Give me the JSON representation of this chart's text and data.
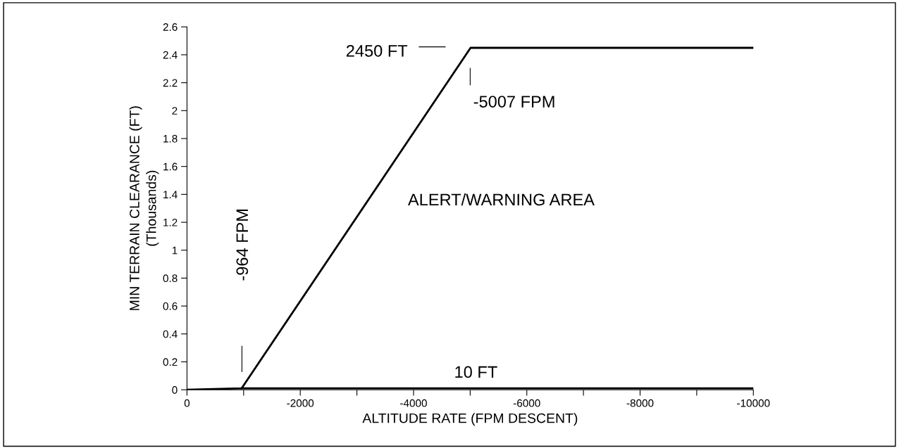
{
  "chart_data": {
    "type": "line",
    "xlabel": "ALTITUDE RATE (FPM DESCENT)",
    "ylabel": "MIN TERRAIN CLEARANCE (FT)\n(Thousands)",
    "series": [
      {
        "color": "#000000",
        "x": [
          0,
          -964,
          -5007,
          -10000
        ],
        "values": [
          0,
          0.01,
          2.45,
          2.45
        ]
      },
      {
        "color": "#000000",
        "x": [
          -964,
          -10000
        ],
        "values": [
          0.01,
          0.01
        ]
      }
    ],
    "xlim": [
      0,
      -10000
    ],
    "xticks": [
      0,
      {
        "value": -1000,
        "label": null
      },
      -2000,
      {
        "value": -3000,
        "label": null
      },
      -4000,
      {
        "value": -5000,
        "label": null
      },
      -6000,
      {
        "value": -7000,
        "label": null
      },
      -8000,
      {
        "value": -9000,
        "label": null
      },
      -10000
    ],
    "ylim": [
      0,
      2.6
    ],
    "yticks": [
      0,
      0.2,
      0.4,
      0.6,
      0.8,
      1,
      1.2,
      1.4,
      1.6,
      1.8,
      2,
      2.2,
      2.4,
      2.6
    ],
    "annotations": [
      "2450 FT",
      "-5007 FPM",
      "-964 FPM",
      "10 FT",
      "ALERT/WARNING AREA"
    ],
    "grid": false,
    "legend": false,
    "marker": "none",
    "line_style": "solid"
  }
}
